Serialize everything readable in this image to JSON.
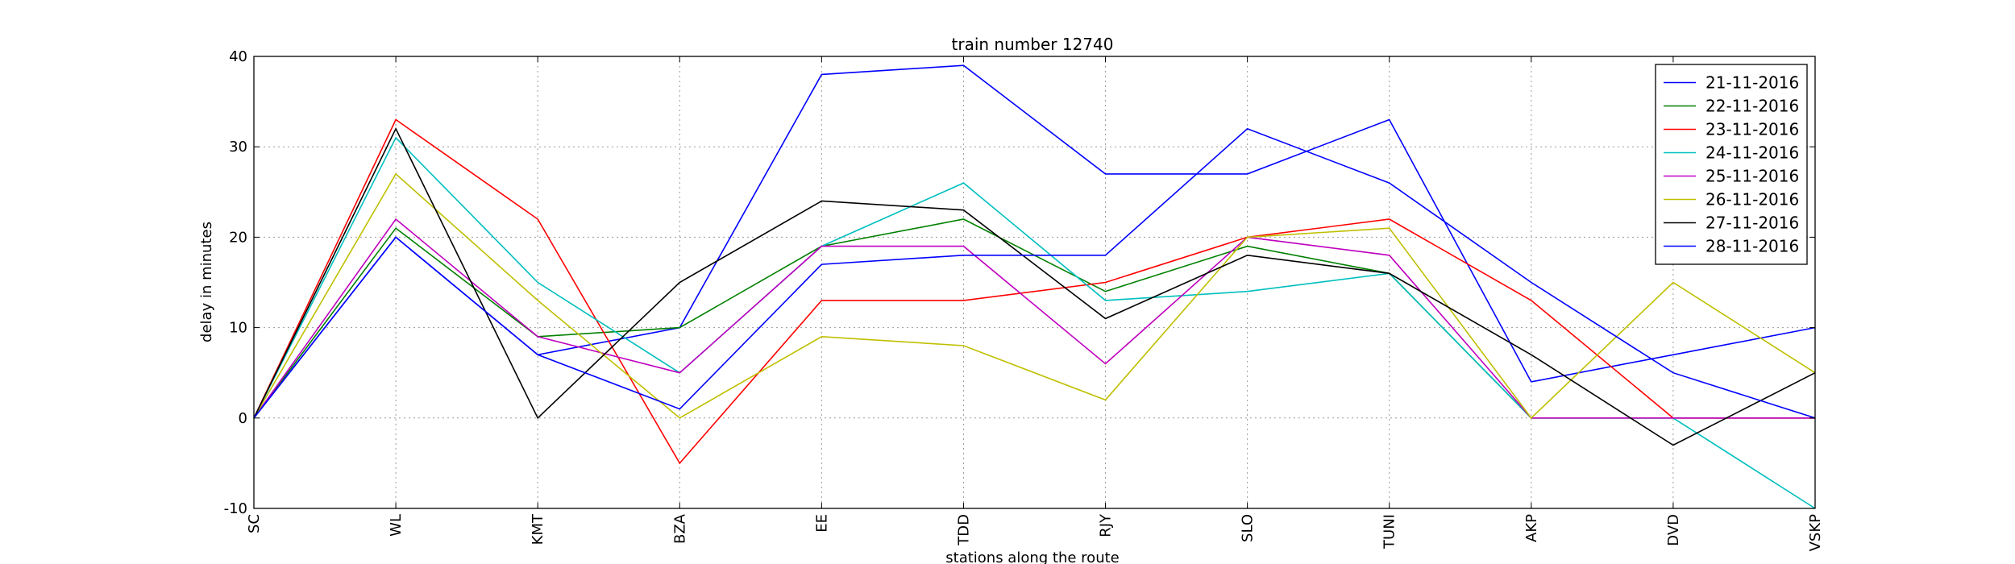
{
  "chart_data": {
    "type": "line",
    "title": "train number 12740",
    "xlabel": "stations along the route",
    "ylabel": "delay in minutes",
    "ylim": [
      -10,
      40
    ],
    "yticks": [
      -10,
      0,
      10,
      20,
      30,
      40
    ],
    "grid": true,
    "legend_position": "top-right",
    "categories": [
      "SC",
      "WL",
      "KMT",
      "BZA",
      "EE",
      "TDD",
      "RJY",
      "SLO",
      "TUNI",
      "AKP",
      "DVD",
      "VSKP"
    ],
    "series": [
      {
        "name": "21-11-2016",
        "color": "#0000ff",
        "values": [
          0,
          20,
          7,
          10,
          38,
          39,
          27,
          27,
          33,
          4,
          7,
          10
        ]
      },
      {
        "name": "22-11-2016",
        "color": "#008000",
        "values": [
          0,
          21,
          9,
          10,
          19,
          22,
          14,
          19,
          16,
          0,
          0,
          0
        ]
      },
      {
        "name": "23-11-2016",
        "color": "#ff0000",
        "values": [
          0,
          33,
          22,
          -5,
          13,
          13,
          15,
          20,
          22,
          13,
          0,
          0
        ]
      },
      {
        "name": "24-11-2016",
        "color": "#00bfbf",
        "values": [
          0,
          31,
          15,
          5,
          19,
          26,
          13,
          14,
          16,
          0,
          0,
          -10
        ]
      },
      {
        "name": "25-11-2016",
        "color": "#bf00bf",
        "values": [
          0,
          22,
          9,
          5,
          19,
          19,
          6,
          20,
          18,
          0,
          0,
          0
        ]
      },
      {
        "name": "26-11-2016",
        "color": "#bfbf00",
        "values": [
          0,
          27,
          13,
          0,
          9,
          8,
          2,
          20,
          21,
          0,
          15,
          5
        ]
      },
      {
        "name": "27-11-2016",
        "color": "#000000",
        "values": [
          0,
          32,
          0,
          15,
          24,
          23,
          11,
          18,
          16,
          7,
          -3,
          5
        ]
      },
      {
        "name": "28-11-2016",
        "color": "#0000ff",
        "values": [
          0,
          20,
          7,
          1,
          17,
          18,
          18,
          32,
          26,
          15,
          5,
          0
        ]
      }
    ]
  }
}
